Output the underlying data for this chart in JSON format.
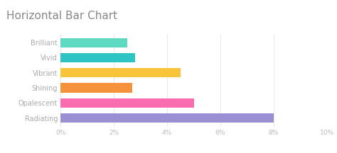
{
  "title": "Horizontal Bar Chart",
  "categories": [
    "Brilliant",
    "Vivid",
    "Vibrant",
    "Shining",
    "Opalescent",
    "Radiating"
  ],
  "values": [
    2.5,
    2.8,
    4.5,
    2.7,
    5.0,
    8.0
  ],
  "bar_colors": [
    "#5DD9C1",
    "#2EC4C4",
    "#F8C53A",
    "#F5923E",
    "#F96DB0",
    "#9B8FD4"
  ],
  "xlim": [
    0,
    10
  ],
  "xtick_values": [
    0,
    2,
    4,
    6,
    8,
    10
  ],
  "xtick_labels": [
    "0%",
    "2%",
    "4%",
    "6%",
    "8%",
    "10%"
  ],
  "background_color": "#ffffff",
  "title_fontsize": 11,
  "label_fontsize": 7,
  "tick_fontsize": 6.5,
  "bar_height": 0.62
}
